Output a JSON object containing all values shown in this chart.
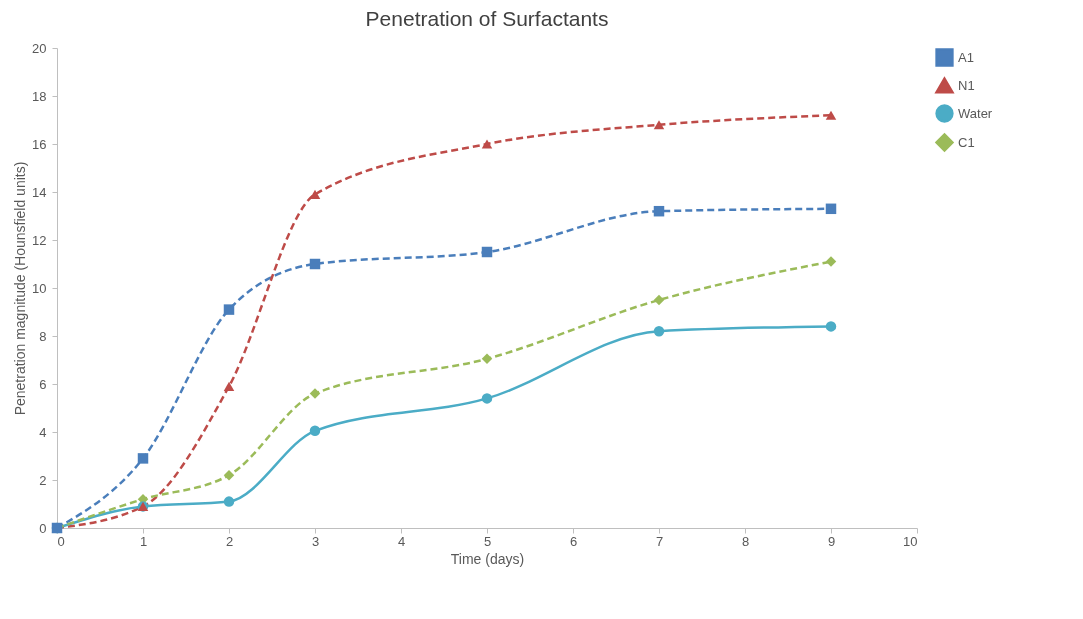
{
  "chart_data": {
    "type": "line",
    "title": "Penetration of Surfactants",
    "xlabel": "Time (days)",
    "ylabel": "Penetration magnitude (Hounsfield units)",
    "x": [
      0,
      1,
      2,
      3,
      5,
      7,
      9
    ],
    "series": [
      {
        "name": "A1",
        "color": "#4a7ebb",
        "marker": "square",
        "line_style": "dashed",
        "values": [
          0,
          2.9,
          9.1,
          11.0,
          11.5,
          13.2,
          13.3
        ]
      },
      {
        "name": "N1",
        "color": "#be4b48",
        "marker": "triangle",
        "line_style": "dashed",
        "values": [
          0,
          0.9,
          5.9,
          13.9,
          16.0,
          16.8,
          17.2
        ]
      },
      {
        "name": "Water",
        "color": "#4bacc6",
        "marker": "circle",
        "line_style": "solid",
        "values": [
          0,
          0.9,
          1.1,
          4.05,
          5.4,
          8.2,
          8.4
        ]
      },
      {
        "name": "C1",
        "color": "#9bbb59",
        "marker": "diamond",
        "line_style": "dashed",
        "values": [
          0,
          1.2,
          2.2,
          5.6,
          7.05,
          9.5,
          11.1
        ]
      }
    ],
    "xlim": [
      0,
      10
    ],
    "xticks": [
      0,
      1,
      2,
      3,
      4,
      5,
      6,
      7,
      8,
      9,
      10
    ],
    "ylim": [
      0,
      20
    ],
    "yticks": [
      0,
      2,
      4,
      6,
      8,
      10,
      12,
      14,
      16,
      18,
      20
    ],
    "grid": false,
    "legend": "right"
  }
}
